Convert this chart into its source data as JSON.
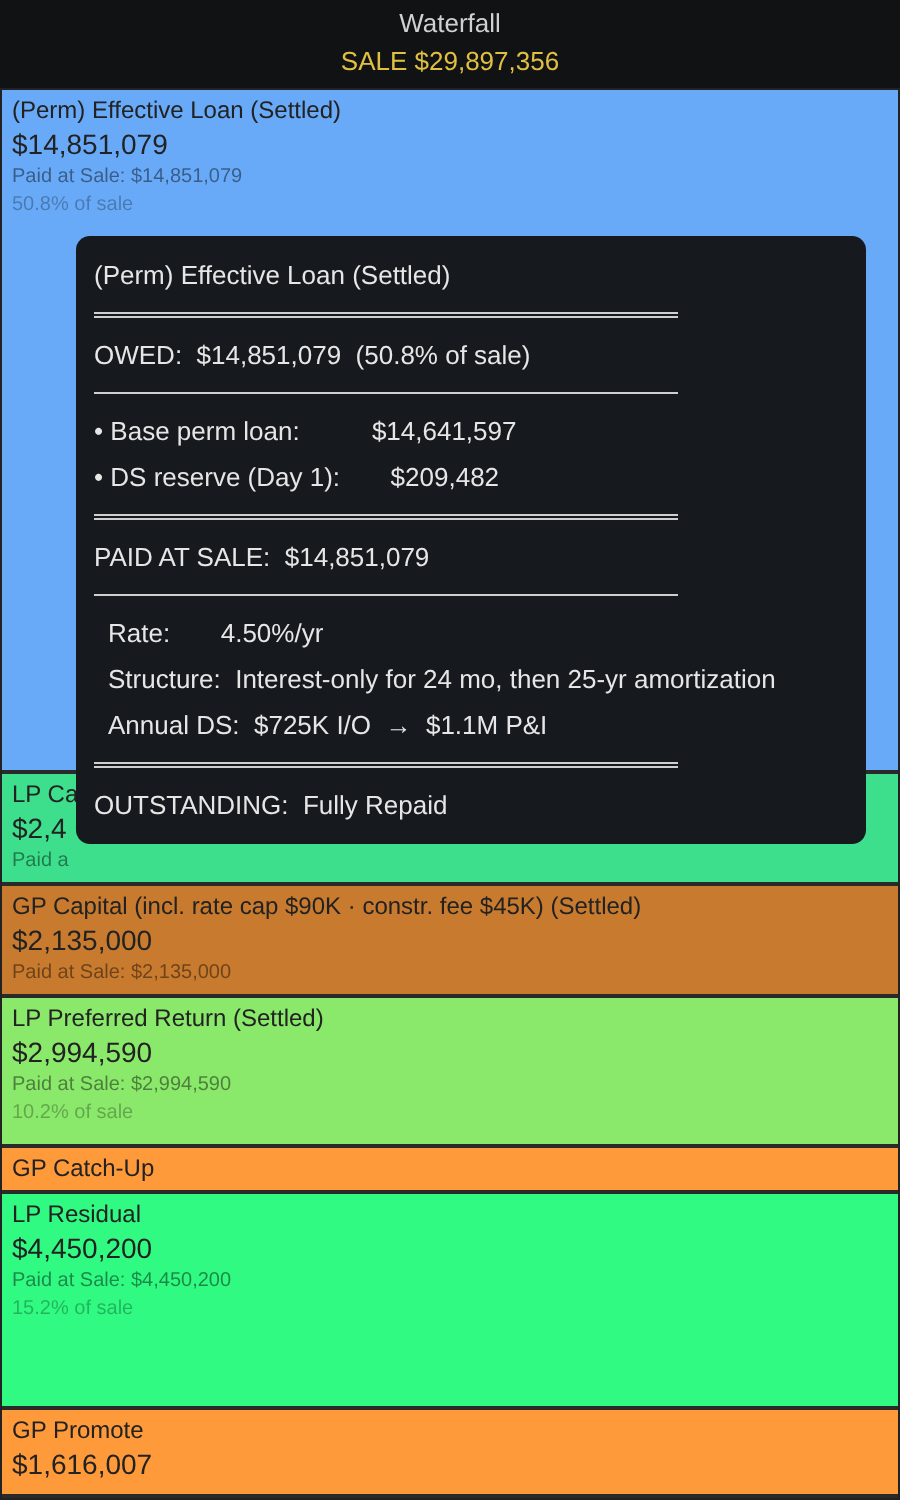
{
  "chart_data": {
    "type": "other",
    "title": "Waterfall",
    "subtitle": "SALE  $29,897,356",
    "categories": [
      "(Perm) Effective Loan (Settled)",
      "LP Ca",
      "GP Capital (incl. rate cap $90K  ·  constr. fee $45K) (Settled)",
      "LP Preferred Return (Settled)",
      "GP Catch-Up",
      "LP Residual",
      "GP Promote"
    ],
    "values": [
      14851079,
      null,
      2135000,
      2994590,
      null,
      4450200,
      1616007
    ],
    "value_labels": [
      "$14,851,079",
      "$2,4",
      "$2,135,000",
      "$2,994,590",
      null,
      "$4,450,200",
      "$1,616,007"
    ],
    "colors": [
      "#68aaf8",
      "#3ddf8c",
      "#c87a2e",
      "#8ae86a",
      "#ff9a3a",
      "#30fa82",
      "#ff9a3a"
    ],
    "annotations": [
      {
        "text": "Paid at Sale: $14,851,079",
        "x": "(Perm) Effective Loan (Settled)"
      },
      {
        "text": "50.8% of sale",
        "x": "(Perm) Effective Loan (Settled)"
      },
      {
        "text": "Paid a",
        "x": "LP Ca"
      },
      {
        "text": "Paid at Sale: $2,135,000",
        "x": "GP Capital (incl. rate cap $90K  ·  constr. fee $45K) (Settled)"
      },
      {
        "text": "Paid at Sale: $2,994,590",
        "x": "LP Preferred Return (Settled)"
      },
      {
        "text": "10.2% of sale",
        "x": "LP Preferred Return (Settled)"
      },
      {
        "text": "Paid at Sale: $4,450,200",
        "x": "LP Residual"
      },
      {
        "text": "15.2% of sale",
        "x": "LP Residual"
      },
      "(Perm) Effective Loan (Settled)",
      "OWED:  $14,851,079  (50.8% of sale)",
      "• Base perm loan:          $14,641,597",
      "• DS reserve (Day 1):       $209,482",
      "PAID AT SALE:  $14,851,079",
      "Rate:       4.50%/yr",
      "Structure:  Interest-only for 24 mo, then 25-yr amortization",
      "Annual DS:  $725K I/O  →  $1.1M P&I",
      "OUTSTANDING:  Fully Repaid"
    ]
  }
}
